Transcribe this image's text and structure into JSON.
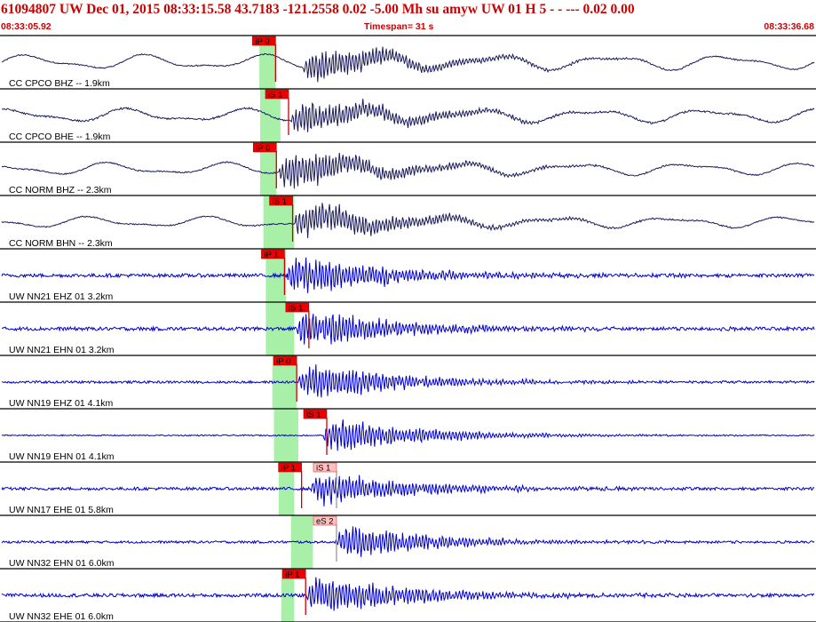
{
  "header": {
    "title": "61094807 UW Dec 01, 2015 08:33:15.58    43.7183 -121.2558  0.02 -5.00 Mh su     amyw      UW 01 H     5   -  - ---    0.02 0.00",
    "start_time": "08:33:05.92",
    "end_time": "08:33:36.68",
    "timespan": "Timespan=  31 s"
  },
  "colors": {
    "header_text": "#cc0000",
    "trace_dark": "#1a1a5a",
    "trace_blue": "#0000c8",
    "pick_box": "#ee0000",
    "pick_box_light": "#ffc0c0",
    "pick_line": "#cc0000",
    "window_green": "#a8f0a8"
  },
  "channels": [
    {
      "label": "CC CPCO BHZ -- 1.9km",
      "color": "dark",
      "onset": 0.37,
      "amp": 0.45,
      "noise": 0.02,
      "lp": 0.55,
      "window": [
        0.317,
        0.337
      ],
      "picks": [
        {
          "label": "iP 0",
          "t": 0.337,
          "box": "red"
        }
      ]
    },
    {
      "label": "CC CPCO BHE -- 1.9km",
      "color": "dark",
      "onset": 0.355,
      "amp": 0.45,
      "noise": 0.03,
      "lp": 0.5,
      "window": [
        0.318,
        0.343
      ],
      "picks": [
        {
          "label": "iS 1",
          "t": 0.353,
          "box": "red"
        }
      ]
    },
    {
      "label": "CC NORM BHZ -- 2.3km",
      "color": "dark",
      "onset": 0.34,
      "amp": 0.5,
      "noise": 0.02,
      "lp": 0.45,
      "window": [
        0.318,
        0.338
      ],
      "picks": [
        {
          "label": "iP 0",
          "t": 0.338,
          "box": "red"
        }
      ]
    },
    {
      "label": "CC NORM BHN -- 2.3km",
      "color": "dark",
      "onset": 0.36,
      "amp": 0.5,
      "noise": 0.02,
      "lp": 0.4,
      "window": [
        0.322,
        0.36
      ],
      "picks": [
        {
          "label": "iS 1",
          "t": 0.358,
          "box": "red"
        }
      ]
    },
    {
      "label": "UW NN21 EHZ 01 3.2km",
      "color": "blue",
      "onset": 0.35,
      "amp": 0.55,
      "noise": 0.06,
      "lp": 0.0,
      "window": [
        0.325,
        0.35
      ],
      "picks": [
        {
          "label": "iP 1",
          "t": 0.348,
          "box": "red"
        }
      ]
    },
    {
      "label": "UW NN21 EHN 01 3.2km",
      "color": "blue",
      "onset": 0.362,
      "amp": 0.5,
      "noise": 0.06,
      "lp": 0.0,
      "window": [
        0.325,
        0.36
      ],
      "picks": [
        {
          "label": "iS 1",
          "t": 0.378,
          "box": "red"
        }
      ]
    },
    {
      "label": "UW NN19 EHZ 01 4.1km",
      "color": "blue",
      "onset": 0.365,
      "amp": 0.5,
      "noise": 0.04,
      "lp": 0.0,
      "window": [
        0.333,
        0.363
      ],
      "picks": [
        {
          "label": "iP 0",
          "t": 0.363,
          "box": "red"
        }
      ]
    },
    {
      "label": "UW NN19 EHN 01 4.1km",
      "color": "blue",
      "onset": 0.395,
      "amp": 0.45,
      "noise": 0.02,
      "lp": 0.0,
      "window": [
        0.335,
        0.365
      ],
      "picks": [
        {
          "label": "iS 1",
          "t": 0.4,
          "box": "red"
        }
      ]
    },
    {
      "label": "UW NN17 EHE 01 5.8km",
      "color": "blue",
      "onset": 0.38,
      "amp": 0.45,
      "noise": 0.05,
      "lp": 0.0,
      "window": [
        0.341,
        0.36
      ],
      "picks": [
        {
          "label": "iP 1",
          "t": 0.369,
          "box": "red"
        },
        {
          "label": "iS 1",
          "t": 0.412,
          "box": "light"
        }
      ]
    },
    {
      "label": "UW NN32 EHN 01 6.0km",
      "color": "blue",
      "onset": 0.41,
      "amp": 0.45,
      "noise": 0.04,
      "lp": 0.0,
      "window": [
        0.356,
        0.383
      ],
      "picks": [
        {
          "label": "eS 2",
          "t": 0.412,
          "box": "light"
        }
      ]
    },
    {
      "label": "UW NN32 EHE 01 6.0km",
      "color": "blue",
      "onset": 0.375,
      "amp": 0.55,
      "noise": 0.06,
      "lp": 0.0,
      "window": [
        0.344,
        0.36
      ],
      "picks": [
        {
          "label": "iP 1",
          "t": 0.374,
          "box": "red"
        }
      ]
    }
  ]
}
